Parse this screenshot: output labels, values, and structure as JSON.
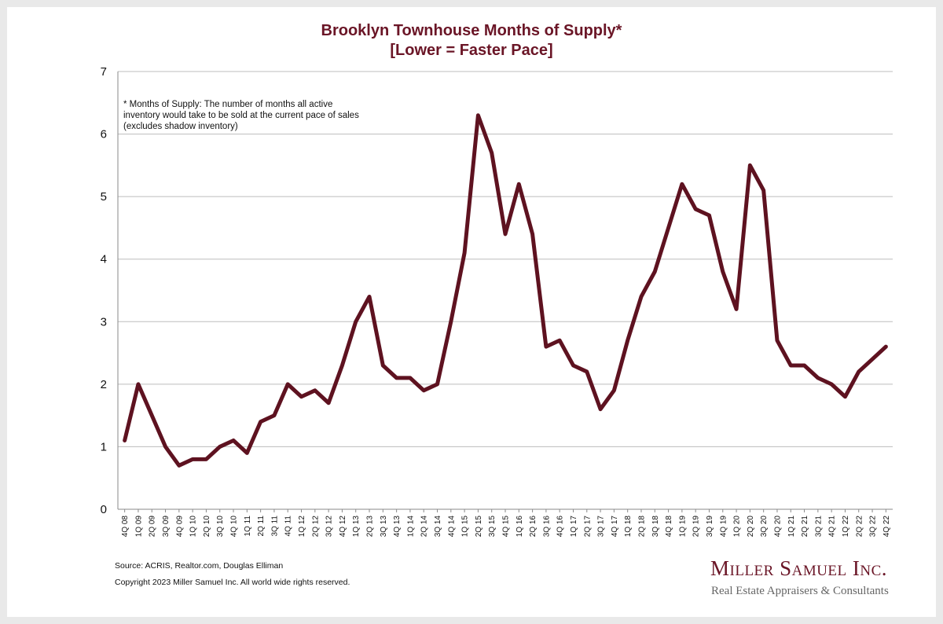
{
  "chart_data": {
    "type": "line",
    "title": "Brooklyn Townhouse Months of Supply*",
    "subtitle": "[Lower = Faster Pace]",
    "annotation": "* Months of Supply: The number of months all active inventory would take to be sold at the current pace of sales (excludes shadow inventory)",
    "ylim": [
      0,
      7
    ],
    "yticks": [
      0,
      1,
      2,
      3,
      4,
      5,
      6,
      7
    ],
    "grid": true,
    "line_color": "#5e1220",
    "x": [
      "4Q 08",
      "1Q 09",
      "2Q 09",
      "3Q 09",
      "4Q 09",
      "1Q 10",
      "2Q 10",
      "3Q 10",
      "4Q 10",
      "1Q 11",
      "2Q 11",
      "3Q 11",
      "4Q 11",
      "1Q 12",
      "2Q 12",
      "3Q 12",
      "4Q 12",
      "1Q 13",
      "2Q 13",
      "3Q 13",
      "4Q 13",
      "1Q 14",
      "2Q 14",
      "3Q 14",
      "4Q 14",
      "1Q 15",
      "2Q 15",
      "3Q 15",
      "4Q 15",
      "1Q 16",
      "2Q 16",
      "3Q 16",
      "4Q 16",
      "1Q 17",
      "2Q 17",
      "3Q 17",
      "4Q 17",
      "1Q 18",
      "2Q 18",
      "3Q 18",
      "4Q 18",
      "1Q 19",
      "2Q 19",
      "3Q 19",
      "4Q 19",
      "1Q 20",
      "2Q 20",
      "3Q 20",
      "4Q 20",
      "1Q 21",
      "2Q 21",
      "3Q 21",
      "4Q 21",
      "1Q 22",
      "2Q 22",
      "3Q 22",
      "4Q 22"
    ],
    "xtick_labels": [
      "4Q 08",
      "1Q 09",
      "2Q 09",
      "3Q 09",
      "4Q 09",
      "1Q 10",
      "2Q 10",
      "3Q 10",
      "4Q 10",
      "1Q 11",
      "2Q 11",
      "3Q 11",
      "4Q 11",
      "1Q 12",
      "2Q 12",
      "3Q 12",
      "4Q 12",
      "1Q 13",
      "2Q 13",
      "3Q 13",
      "4Q 13",
      "1Q 14",
      "2Q 14",
      "3Q 14",
      "4Q 14",
      "1Q 15",
      "2Q 15",
      "3Q 15",
      "4Q 15",
      "1Q 16",
      "2Q 16",
      "3Q 16",
      "4Q 16",
      "1Q 17",
      "2Q 17",
      "3Q 17",
      "4Q 17",
      "1Q 18",
      "2Q 18",
      "3Q 18",
      "4Q 18",
      "1Q 19",
      "2Q 19",
      "3Q 19",
      "4Q 19",
      "1Q 20",
      "2Q 20",
      "3Q 20",
      "4Q 20",
      "1Q 21",
      "2Q 21",
      "3Q 21",
      "4Q 21",
      "1Q 22",
      "2Q 22",
      "3Q 22",
      "4Q 22"
    ],
    "values": [
      1.1,
      2.0,
      1.5,
      1.0,
      0.7,
      0.8,
      0.8,
      1.0,
      1.1,
      0.9,
      1.4,
      1.5,
      2.0,
      1.8,
      1.9,
      1.7,
      2.3,
      3.0,
      3.4,
      2.3,
      2.1,
      2.1,
      1.9,
      2.0,
      3.0,
      4.1,
      6.3,
      5.7,
      4.4,
      5.2,
      4.4,
      2.6,
      2.7,
      2.3,
      2.2,
      1.6,
      1.9,
      2.7,
      3.4,
      3.8,
      4.5,
      5.2,
      4.8,
      4.7,
      3.8,
      3.2,
      5.5,
      5.1,
      2.7,
      2.3,
      2.3,
      2.1,
      2.0,
      1.8,
      2.2,
      2.4,
      2.6
    ]
  },
  "footer": {
    "source": "Source: ACRIS, Realtor.com, Douglas Elliman",
    "copyright": "Copyright 2023 Miller Samuel Inc.  All world wide rights reserved."
  },
  "brand": {
    "name": "Miller Samuel Inc.",
    "tagline": "Real Estate Appraisers & Consultants"
  }
}
